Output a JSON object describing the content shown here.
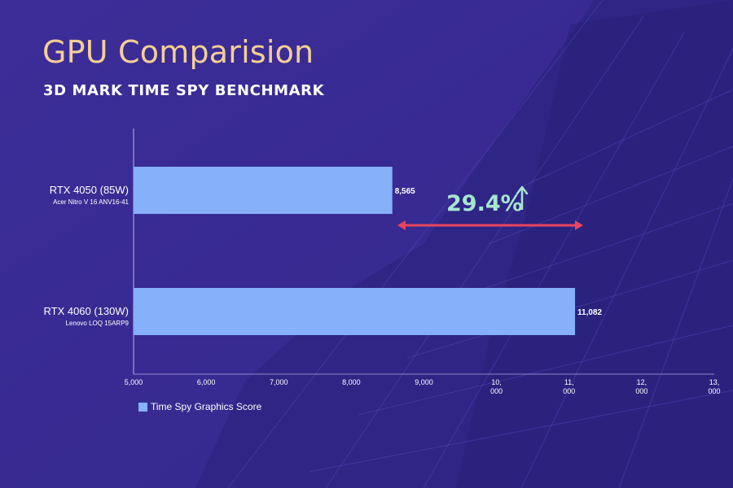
{
  "header": {
    "title": "GPU Comparision",
    "subtitle": "3D MARK TIME SPY BENCHMARK"
  },
  "colors": {
    "background": "#3a2c95",
    "bar": "#86b0fa",
    "title": "#f5cf95",
    "annotation_text": "#a6e6cf",
    "annotation_arrow": "#e8455e"
  },
  "annotation": {
    "text": "29.4%",
    "icon": "up-arrow-icon"
  },
  "chart_data": {
    "type": "bar",
    "orientation": "horizontal",
    "title": "3D MARK TIME SPY BENCHMARK",
    "categories": [
      {
        "name": "RTX 4050 (85W)",
        "subtitle": "Acer Nitro V 16 ANV16-41"
      },
      {
        "name": "RTX 4060 (130W)",
        "subtitle": "Lenovo LOQ 15ARP9"
      }
    ],
    "series": [
      {
        "name": "Time Spy Graphics Score",
        "values": [
          8565,
          11082
        ]
      }
    ],
    "value_labels": [
      "8,565",
      "11,082"
    ],
    "xlim": [
      5000,
      13000
    ],
    "xticks": [
      {
        "value": 5000,
        "label": [
          "5,000"
        ]
      },
      {
        "value": 6000,
        "label": [
          "6,000"
        ]
      },
      {
        "value": 7000,
        "label": [
          "7,000"
        ]
      },
      {
        "value": 8000,
        "label": [
          "8,000"
        ]
      },
      {
        "value": 9000,
        "label": [
          "9,000"
        ]
      },
      {
        "value": 10000,
        "label": [
          "10,",
          "000"
        ]
      },
      {
        "value": 11000,
        "label": [
          "11,",
          "000"
        ]
      },
      {
        "value": 12000,
        "label": [
          "12,",
          "000"
        ]
      },
      {
        "value": 13000,
        "label": [
          "13,",
          "000"
        ]
      }
    ],
    "grid": false,
    "legend_position": "bottom-left"
  }
}
